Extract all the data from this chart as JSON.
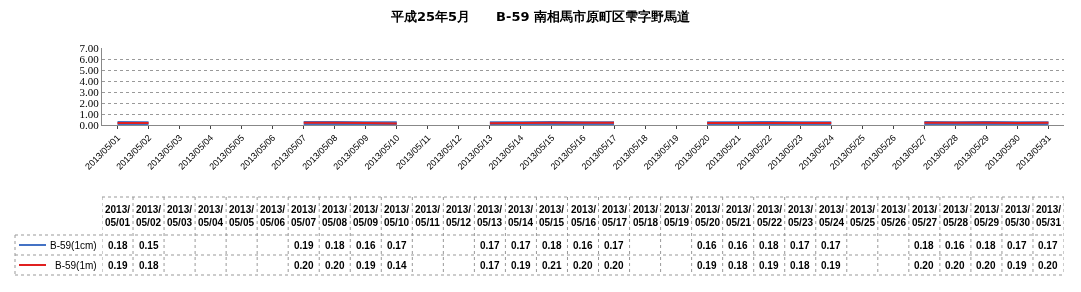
{
  "chart_data": {
    "type": "line",
    "title": "平成25年5月　　B-59 南相馬市原町区雫字野馬道",
    "categories": [
      "2013/05/01",
      "2013/05/02",
      "2013/05/03",
      "2013/05/04",
      "2013/05/05",
      "2013/05/06",
      "2013/05/07",
      "2013/05/08",
      "2013/05/09",
      "2013/05/10",
      "2013/05/11",
      "2013/05/12",
      "2013/05/13",
      "2013/05/14",
      "2013/05/15",
      "2013/05/16",
      "2013/05/17",
      "2013/05/18",
      "2013/05/19",
      "2013/05/20",
      "2013/05/21",
      "2013/05/22",
      "2013/05/23",
      "2013/05/24",
      "2013/05/25",
      "2013/05/26",
      "2013/05/27",
      "2013/05/28",
      "2013/05/29",
      "2013/05/30",
      "2013/05/31"
    ],
    "series": [
      {
        "name": "B-59(1cm)",
        "color": "#4472c4",
        "values": [
          0.18,
          0.15,
          null,
          null,
          null,
          null,
          0.19,
          0.18,
          0.16,
          0.17,
          null,
          null,
          0.17,
          0.17,
          0.18,
          0.16,
          0.17,
          null,
          null,
          0.16,
          0.16,
          0.18,
          0.17,
          0.17,
          null,
          null,
          0.18,
          0.16,
          0.18,
          0.17,
          0.17
        ],
        "value_labels": [
          "0.18",
          "0.15",
          null,
          null,
          null,
          null,
          "0.19",
          "0.18",
          "0.16",
          "0.17",
          null,
          null,
          "0.17",
          "0.17",
          "0.18",
          "0.16",
          "0.17",
          null,
          null,
          "0.16",
          "0.16",
          "0.18",
          "0.17",
          "0.17",
          null,
          null,
          "0.18",
          "0.16",
          "0.18",
          "0.17",
          "0.17"
        ]
      },
      {
        "name": "B-59(1m)",
        "color": "#e02020",
        "values": [
          0.19,
          0.18,
          null,
          null,
          null,
          null,
          0.2,
          0.2,
          0.19,
          0.14,
          null,
          null,
          0.17,
          0.19,
          0.21,
          0.2,
          0.2,
          null,
          null,
          0.19,
          0.18,
          0.19,
          0.18,
          0.19,
          null,
          null,
          0.2,
          0.2,
          0.2,
          0.19,
          0.2
        ],
        "value_labels": [
          "0.19",
          "0.18",
          null,
          null,
          null,
          null,
          "0.20",
          "0.20",
          "0.19",
          "0.14",
          null,
          null,
          "0.17",
          "0.19",
          "0.21",
          "0.20",
          "0.20",
          null,
          null,
          "0.19",
          "0.18",
          "0.19",
          "0.18",
          "0.19",
          null,
          null,
          "0.20",
          "0.20",
          "0.20",
          "0.19",
          "0.20"
        ]
      }
    ],
    "ylim": [
      0,
      7
    ],
    "yticks": [
      {
        "value": 0,
        "label": "0.00"
      },
      {
        "value": 1,
        "label": "1.00"
      },
      {
        "value": 2,
        "label": "2.00"
      },
      {
        "value": 3,
        "label": "3.00"
      },
      {
        "value": 4,
        "label": "4.00"
      },
      {
        "value": 5,
        "label": "5.00"
      },
      {
        "value": 6,
        "label": "6.00"
      },
      {
        "value": 7,
        "label": "7.00"
      }
    ],
    "grid": "y",
    "legend": "bottom left",
    "marker": "none",
    "line_style": "solid"
  }
}
